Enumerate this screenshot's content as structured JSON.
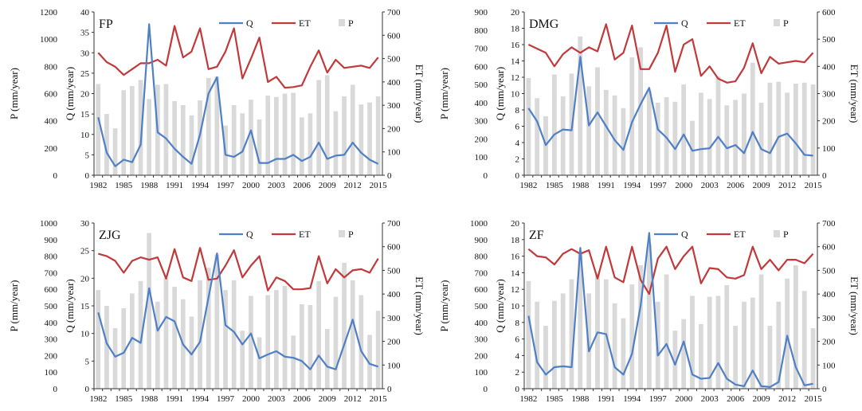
{
  "colors": {
    "Q": "#4f7fc4",
    "ET": "#c0393b",
    "P": "#d9d9d9"
  },
  "chart_data": [
    {
      "type": "bar+line",
      "station": "FP",
      "categories": [
        1982,
        1983,
        1984,
        1985,
        1986,
        1987,
        1988,
        1989,
        1990,
        1991,
        1992,
        1993,
        1994,
        1995,
        1996,
        1997,
        1998,
        1999,
        2000,
        2001,
        2002,
        2003,
        2004,
        2005,
        2006,
        2007,
        2008,
        2009,
        2010,
        2011,
        2012,
        2013,
        2014,
        2015
      ],
      "xtick_labels": [
        "1982",
        "1985",
        "1988",
        "1991",
        "1994",
        "1997",
        "2000",
        "2003",
        "2006",
        "2009",
        "2012",
        "2015"
      ],
      "ylabel_left": "P (mm/year)",
      "ylabel_inner": "Q (mm/year)",
      "ylabel_right": "ET (mm/year)",
      "p_lim": [
        0,
        1200
      ],
      "q_lim": [
        0,
        40
      ],
      "et_lim": [
        0,
        700
      ],
      "p_ticks": [
        "0",
        "200",
        "400",
        "600",
        "800",
        "1000",
        "1200"
      ],
      "q_ticks": [
        "0",
        "5",
        "10",
        "15",
        "20",
        "25",
        "30",
        "35",
        "40"
      ],
      "et_ticks": [
        "0",
        "100",
        "200",
        "300",
        "400",
        "500",
        "600",
        "700"
      ],
      "legend": [
        "Q",
        "ET",
        "P"
      ],
      "series": [
        {
          "name": "P",
          "kind": "bar",
          "values": [
            670,
            450,
            345,
            625,
            655,
            700,
            560,
            665,
            670,
            545,
            515,
            440,
            550,
            715,
            725,
            365,
            515,
            455,
            555,
            410,
            585,
            575,
            600,
            605,
            425,
            455,
            700,
            735,
            470,
            580,
            665,
            520,
            535,
            580
          ]
        },
        {
          "name": "Q",
          "kind": "line",
          "axis": "q",
          "values": [
            14.2,
            5.5,
            2.2,
            3.8,
            3.2,
            7.5,
            37,
            10.5,
            9,
            6.5,
            4.5,
            2.8,
            10,
            20,
            24,
            5,
            4.5,
            5.8,
            11,
            3,
            3,
            4,
            4,
            5,
            3.5,
            4.5,
            8,
            4,
            4.8,
            5,
            8,
            5.5,
            3.8,
            2.8
          ]
        },
        {
          "name": "ET",
          "kind": "line",
          "axis": "et",
          "values": [
            525,
            485,
            465,
            430,
            455,
            480,
            480,
            495,
            470,
            640,
            505,
            530,
            630,
            455,
            465,
            530,
            630,
            415,
            500,
            590,
            400,
            422,
            375,
            378,
            385,
            465,
            535,
            440,
            495,
            460,
            465,
            470,
            460,
            505
          ]
        }
      ]
    },
    {
      "type": "bar+line",
      "station": "DMG",
      "categories": [
        1982,
        1983,
        1984,
        1985,
        1986,
        1987,
        1988,
        1989,
        1990,
        1991,
        1992,
        1993,
        1994,
        1995,
        1996,
        1997,
        1998,
        1999,
        2000,
        2001,
        2002,
        2003,
        2004,
        2005,
        2006,
        2007,
        2008,
        2009,
        2010,
        2011,
        2012,
        2013,
        2014,
        2015
      ],
      "xtick_labels": [
        "1982",
        "1985",
        "1988",
        "1991",
        "1994",
        "1997",
        "2000",
        "2003",
        "2006",
        "2009",
        "2012",
        "2015"
      ],
      "ylabel_left": "P (mm/year)",
      "ylabel_inner": "Q (mm/year)",
      "ylabel_right": "ET (mm/year)",
      "p_lim": [
        0,
        900
      ],
      "q_lim": [
        0,
        20
      ],
      "et_lim": [
        0,
        600
      ],
      "p_ticks": [
        "0",
        "100",
        "200",
        "300",
        "400",
        "500",
        "600",
        "700",
        "800",
        "900"
      ],
      "q_ticks": [
        "0",
        "2",
        "4",
        "6",
        "8",
        "10",
        "12",
        "14",
        "16",
        "18",
        "20"
      ],
      "et_ticks": [
        "0",
        "100",
        "200",
        "300",
        "400",
        "500",
        "600"
      ],
      "legend": [
        "Q",
        "ET",
        "P"
      ],
      "series": [
        {
          "name": "P",
          "kind": "bar",
          "values": [
            535,
            425,
            325,
            555,
            435,
            560,
            765,
            490,
            595,
            470,
            440,
            370,
            650,
            705,
            465,
            400,
            430,
            405,
            500,
            300,
            455,
            420,
            545,
            385,
            415,
            450,
            620,
            400,
            510,
            515,
            455,
            505,
            510,
            500
          ]
        },
        {
          "name": "Q",
          "kind": "line",
          "axis": "q",
          "values": [
            8.2,
            6.6,
            3.7,
            5,
            5.6,
            5.5,
            14.5,
            6.1,
            7.7,
            6,
            4.3,
            3.1,
            6.5,
            8.7,
            10.7,
            5.6,
            4.6,
            3.2,
            5,
            3,
            3.2,
            3.3,
            4.7,
            3.3,
            3.7,
            2.7,
            5.3,
            3.2,
            2.7,
            4.7,
            5.1,
            3.9,
            2.5,
            2.4
          ]
        },
        {
          "name": "ET",
          "kind": "line",
          "axis": "et",
          "values": [
            480,
            465,
            450,
            400,
            445,
            470,
            450,
            470,
            455,
            555,
            425,
            450,
            550,
            390,
            390,
            450,
            550,
            380,
            480,
            500,
            365,
            400,
            355,
            340,
            345,
            395,
            485,
            375,
            435,
            410,
            415,
            420,
            415,
            450
          ]
        }
      ]
    },
    {
      "type": "bar+line",
      "station": "ZJG",
      "categories": [
        1982,
        1983,
        1984,
        1985,
        1986,
        1987,
        1988,
        1989,
        1990,
        1991,
        1992,
        1993,
        1994,
        1995,
        1996,
        1997,
        1998,
        1999,
        2000,
        2001,
        2002,
        2003,
        2004,
        2005,
        2006,
        2007,
        2008,
        2009,
        2010,
        2011,
        2012,
        2013,
        2014,
        2015
      ],
      "xtick_labels": [
        "1982",
        "1985",
        "1988",
        "1991",
        "1994",
        "1997",
        "2000",
        "2003",
        "2006",
        "2009",
        "2012",
        "2015"
      ],
      "ylabel_left": "P (mm/year)",
      "ylabel_inner": "Q (mm/year)",
      "ylabel_right": "ET (mm/year)",
      "p_lim": [
        0,
        1000
      ],
      "q_lim": [
        0,
        30
      ],
      "et_lim": [
        0,
        700
      ],
      "p_ticks": [
        "0",
        "100",
        "200",
        "300",
        "400",
        "500",
        "600",
        "700",
        "800",
        "900",
        "1000"
      ],
      "q_ticks": [
        "0",
        "5",
        "10",
        "15",
        "20",
        "25",
        "30"
      ],
      "et_ticks": [
        "0",
        "100",
        "200",
        "300",
        "400",
        "500",
        "600",
        "700"
      ],
      "legend": [
        "Q",
        "ET",
        "P"
      ],
      "series": [
        {
          "name": "P",
          "kind": "bar",
          "values": [
            595,
            500,
            365,
            485,
            575,
            650,
            940,
            525,
            670,
            615,
            540,
            435,
            655,
            730,
            810,
            595,
            655,
            350,
            560,
            310,
            565,
            595,
            620,
            320,
            510,
            505,
            650,
            360,
            555,
            760,
            655,
            565,
            325,
            470
          ]
        },
        {
          "name": "Q",
          "kind": "line",
          "axis": "q",
          "values": [
            13.8,
            8.2,
            5.8,
            6.5,
            9.2,
            8.3,
            18.2,
            10.5,
            13,
            12.2,
            8,
            6.2,
            8.5,
            16.5,
            24.5,
            11.5,
            10.3,
            8,
            10,
            5.5,
            6.2,
            6.8,
            5.8,
            5.6,
            5,
            3.5,
            6,
            4,
            3.5,
            8,
            12.5,
            6.8,
            4.5,
            4
          ]
        },
        {
          "name": "ET",
          "kind": "line",
          "axis": "et",
          "values": [
            570,
            560,
            540,
            490,
            540,
            555,
            545,
            555,
            465,
            590,
            470,
            455,
            595,
            460,
            465,
            520,
            585,
            470,
            520,
            560,
            415,
            470,
            455,
            420,
            420,
            425,
            560,
            445,
            505,
            470,
            500,
            505,
            490,
            550
          ]
        }
      ]
    },
    {
      "type": "bar+line",
      "station": "ZF",
      "categories": [
        1982,
        1983,
        1984,
        1985,
        1986,
        1987,
        1988,
        1989,
        1990,
        1991,
        1992,
        1993,
        1994,
        1995,
        1996,
        1997,
        1998,
        1999,
        2000,
        2001,
        2002,
        2003,
        2004,
        2005,
        2006,
        2007,
        2008,
        2009,
        2010,
        2011,
        2012,
        2013,
        2014,
        2015
      ],
      "xtick_labels": [
        "1982",
        "1985",
        "1988",
        "1991",
        "1994",
        "1997",
        "2000",
        "2003",
        "2006",
        "2009",
        "2012",
        "2015"
      ],
      "ylabel_left": "P (mm/year)",
      "ylabel_inner": "Q (mm/year)",
      "ylabel_right": "ET (mm/year)",
      "p_lim": [
        0,
        1000
      ],
      "q_lim": [
        0,
        20
      ],
      "et_lim": [
        0,
        700
      ],
      "p_ticks": [
        "0",
        "100",
        "200",
        "300",
        "400",
        "500",
        "600",
        "700",
        "800",
        "900",
        "1000"
      ],
      "q_ticks": [
        "0",
        "2",
        "4",
        "6",
        "8",
        "10",
        "12",
        "14",
        "16",
        "18",
        "20"
      ],
      "et_ticks": [
        "0",
        "100",
        "200",
        "300",
        "400",
        "500",
        "600",
        "700"
      ],
      "legend": [
        "Q",
        "ET",
        "P"
      ],
      "series": [
        {
          "name": "P",
          "kind": "bar",
          "values": [
            650,
            525,
            380,
            530,
            575,
            660,
            830,
            575,
            695,
            660,
            515,
            425,
            630,
            745,
            870,
            525,
            690,
            350,
            420,
            560,
            390,
            555,
            560,
            625,
            380,
            525,
            550,
            690,
            380,
            525,
            665,
            745,
            590,
            365
          ]
        },
        {
          "name": "Q",
          "kind": "line",
          "axis": "q",
          "values": [
            8.8,
            3.2,
            1.7,
            2.6,
            2.7,
            2.6,
            17,
            4.5,
            6.8,
            6.6,
            2.6,
            1.7,
            4.2,
            10,
            18.8,
            4,
            5.4,
            2.9,
            5.7,
            1.7,
            1.2,
            1.3,
            3.1,
            1.2,
            0.5,
            0.3,
            2.2,
            0.3,
            0.2,
            0.8,
            6.4,
            2.6,
            0.4,
            0.6
          ]
        },
        {
          "name": "ET",
          "kind": "line",
          "axis": "et",
          "values": [
            590,
            560,
            555,
            525,
            570,
            590,
            570,
            585,
            465,
            600,
            470,
            450,
            600,
            460,
            400,
            550,
            600,
            505,
            560,
            600,
            445,
            510,
            505,
            470,
            465,
            480,
            600,
            505,
            545,
            500,
            545,
            545,
            530,
            570
          ]
        }
      ]
    }
  ]
}
